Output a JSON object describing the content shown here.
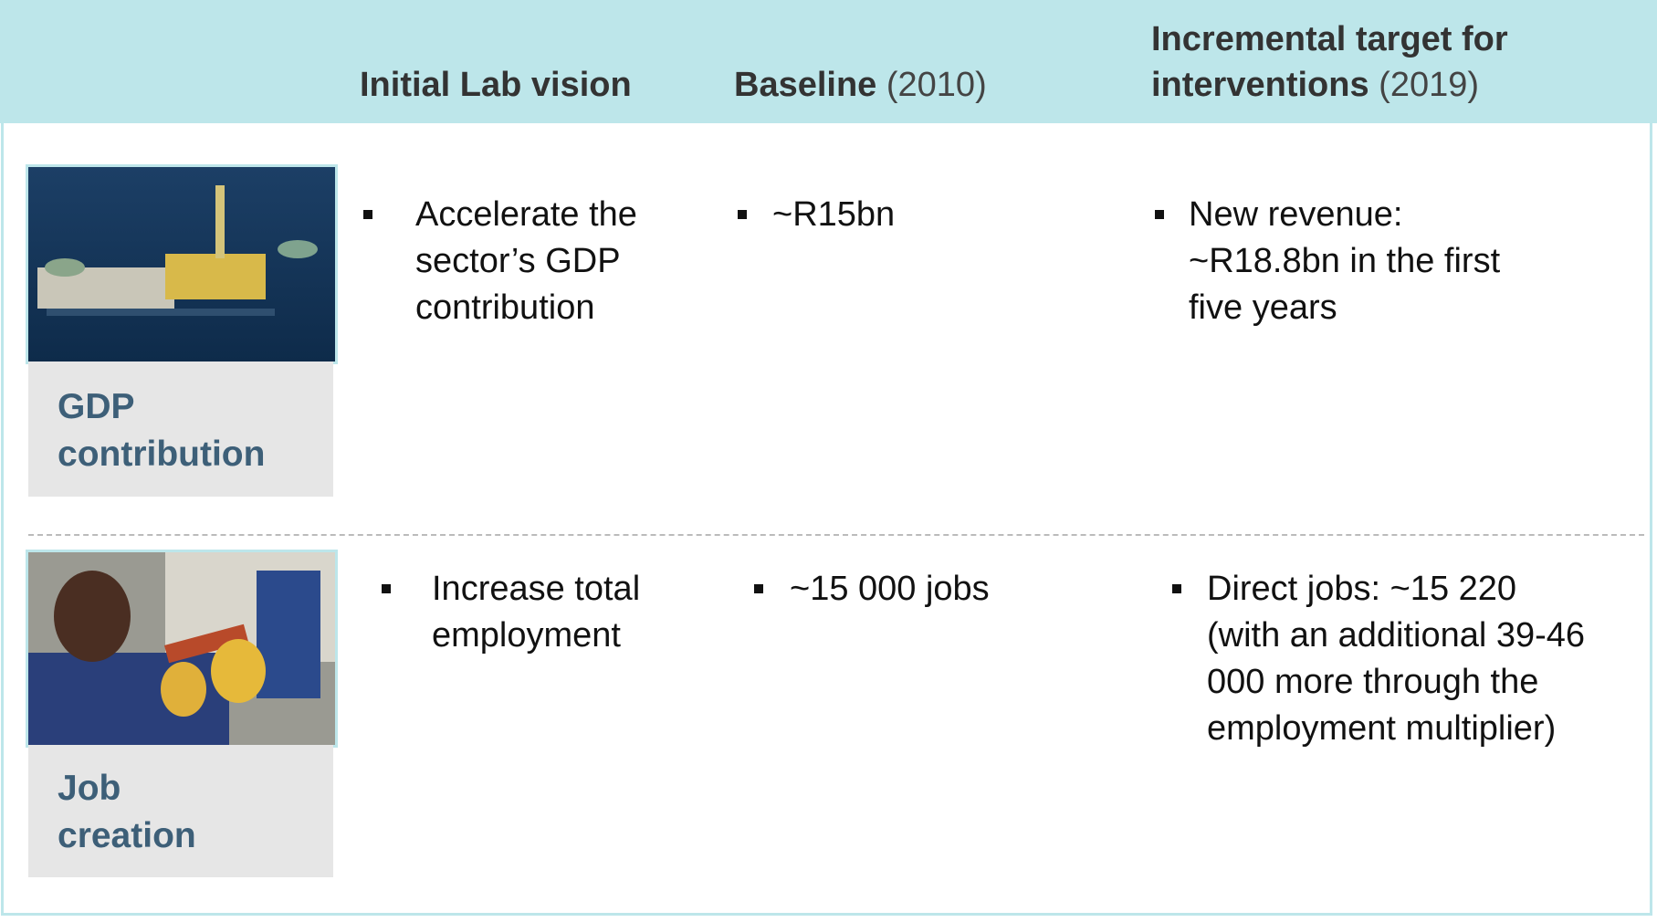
{
  "header": {
    "columns": [
      {
        "bold": "Initial Lab vision"
      },
      {
        "bold": "Baseline",
        "light": "(2010)"
      },
      {
        "bold": "Incremental target for interventions",
        "light": "(2019)"
      }
    ]
  },
  "rows": [
    {
      "label": "GDP contribution",
      "vision": "Accelerate the sector’s GDP contribution",
      "baseline": "~R15bn",
      "target": "New revenue: ~R18.8bn in the first five years"
    },
    {
      "label": "Job creation",
      "vision": "Increase total employment",
      "baseline": "~15 000 jobs",
      "target": "Direct jobs: ~15 220 (with an additional 39-46 000 more through the employment multiplier)"
    }
  ]
}
